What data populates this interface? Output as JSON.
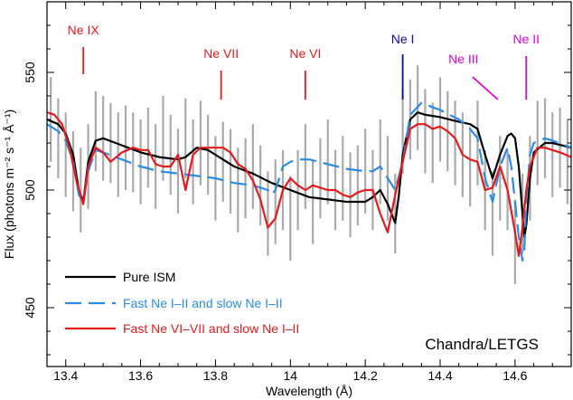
{
  "chart_data": {
    "type": "line",
    "xlabel": "Wavelength (Å)",
    "ylabel": "Flux (photons m⁻² s⁻¹ Å⁻¹)",
    "xlim": [
      13.35,
      14.75
    ],
    "ylim": [
      425,
      580
    ],
    "x_ticks": [
      13.4,
      13.6,
      13.8,
      14.0,
      14.2,
      14.4,
      14.6
    ],
    "x_tick_labels": [
      "13.4",
      "13.6",
      "13.8",
      "14",
      "14.2",
      "14.4",
      "14.6"
    ],
    "y_ticks": [
      450,
      500,
      550
    ],
    "y_tick_labels": [
      "450",
      "500",
      "550"
    ],
    "annotation_text": "Chandra/LETGS",
    "legend_position": "bottom-left",
    "ion_markers": [
      {
        "label": "Ne IX",
        "x": 13.447,
        "color": "#e41a1c"
      },
      {
        "label": "Ne VII",
        "x": 13.815,
        "color": "#e41a1c"
      },
      {
        "label": "Ne VI",
        "x": 14.04,
        "color": "#e41a1c"
      },
      {
        "label": "Ne I",
        "x": 14.3,
        "color": "#0a0a9e"
      },
      {
        "label": "Ne III",
        "x": 14.53,
        "color": "#e000e0"
      },
      {
        "label": "Ne II",
        "x": 14.63,
        "color": "#e000e0"
      }
    ],
    "data_errorbars": {
      "color": "#aaaaaa",
      "x": [
        13.36,
        13.38,
        13.4,
        13.42,
        13.44,
        13.46,
        13.48,
        13.5,
        13.52,
        13.54,
        13.56,
        13.58,
        13.6,
        13.62,
        13.64,
        13.66,
        13.68,
        13.7,
        13.72,
        13.74,
        13.76,
        13.78,
        13.8,
        13.82,
        13.84,
        13.86,
        13.88,
        13.9,
        13.92,
        13.94,
        13.96,
        13.98,
        14.0,
        14.02,
        14.04,
        14.06,
        14.08,
        14.1,
        14.12,
        14.14,
        14.16,
        14.18,
        14.2,
        14.22,
        14.24,
        14.26,
        14.28,
        14.3,
        14.32,
        14.34,
        14.36,
        14.38,
        14.4,
        14.42,
        14.44,
        14.46,
        14.48,
        14.5,
        14.52,
        14.54,
        14.56,
        14.58,
        14.6,
        14.62,
        14.64,
        14.66,
        14.68,
        14.7,
        14.72,
        14.74
      ],
      "y": [
        530,
        522,
        515,
        508,
        500,
        510,
        525,
        522,
        520,
        515,
        518,
        516,
        512,
        518,
        510,
        522,
        515,
        508,
        522,
        512,
        520,
        515,
        505,
        512,
        508,
        500,
        505,
        510,
        502,
        490,
        495,
        500,
        488,
        500,
        510,
        495,
        505,
        512,
        500,
        505,
        498,
        502,
        508,
        500,
        512,
        505,
        490,
        525,
        530,
        535,
        525,
        520,
        530,
        525,
        520,
        515,
        510,
        520,
        500,
        490,
        505,
        500,
        478,
        490,
        505,
        520,
        522,
        515,
        518,
        512
      ],
      "err": [
        18,
        17,
        18,
        17,
        18,
        18,
        17,
        18,
        17,
        18,
        18,
        17,
        18,
        17,
        18,
        18,
        17,
        18,
        17,
        18,
        18,
        17,
        18,
        17,
        18,
        18,
        17,
        18,
        17,
        18,
        18,
        17,
        18,
        17,
        18,
        18,
        17,
        18,
        17,
        18,
        18,
        17,
        18,
        17,
        18,
        18,
        17,
        18,
        17,
        18,
        18,
        17,
        18,
        17,
        18,
        18,
        17,
        18,
        17,
        18,
        18,
        17,
        18,
        17,
        18,
        18,
        17,
        18,
        17,
        18
      ]
    },
    "series": [
      {
        "name": "Pure ISM",
        "color": "#000000",
        "dash": "solid",
        "x": [
          13.35,
          13.38,
          13.4,
          13.42,
          13.435,
          13.447,
          13.46,
          13.48,
          13.5,
          13.55,
          13.6,
          13.65,
          13.7,
          13.72,
          13.75,
          13.78,
          13.8,
          13.85,
          13.9,
          13.95,
          14.0,
          14.05,
          14.1,
          14.15,
          14.2,
          14.22,
          14.24,
          14.26,
          14.28,
          14.29,
          14.3,
          14.32,
          14.34,
          14.36,
          14.4,
          14.45,
          14.48,
          14.5,
          14.52,
          14.54,
          14.56,
          14.58,
          14.59,
          14.6,
          14.61,
          14.62,
          14.625,
          14.63,
          14.64,
          14.65,
          14.68,
          14.7,
          14.75
        ],
        "y": [
          530,
          528,
          524,
          515,
          500,
          495,
          512,
          521,
          522,
          519,
          516,
          514,
          513,
          514,
          518,
          517,
          515,
          510,
          507,
          503,
          500,
          497,
          496,
          495,
          495,
          497,
          500,
          494,
          486,
          498,
          515,
          530,
          533,
          532,
          531,
          529,
          528,
          526,
          515,
          505,
          515,
          523,
          524,
          522,
          510,
          490,
          480,
          485,
          505,
          516,
          520,
          520,
          518
        ]
      },
      {
        "name": "Fast Ne I–II and slow Ne I–II",
        "color": "#2b8be8",
        "dash": "long",
        "x": [
          13.35,
          13.38,
          13.4,
          13.42,
          13.435,
          13.447,
          13.46,
          13.48,
          13.5,
          13.55,
          13.6,
          13.65,
          13.7,
          13.75,
          13.8,
          13.85,
          13.9,
          13.94,
          13.95,
          13.96,
          13.97,
          13.98,
          14.0,
          14.02,
          14.05,
          14.1,
          14.15,
          14.2,
          14.22,
          14.24,
          14.26,
          14.28,
          14.3,
          14.32,
          14.35,
          14.4,
          14.45,
          14.48,
          14.5,
          14.52,
          14.54,
          14.56,
          14.58,
          14.59,
          14.6,
          14.61,
          14.62,
          14.625,
          14.63,
          14.64,
          14.65,
          14.68,
          14.7,
          14.75
        ],
        "y": [
          528,
          525,
          521,
          512,
          498,
          495,
          508,
          517,
          516,
          513,
          510,
          508,
          507,
          506,
          505,
          503,
          502,
          500,
          498,
          500,
          505,
          510,
          512,
          513,
          513,
          511,
          509,
          508,
          508,
          510,
          505,
          500,
          512,
          532,
          537,
          534,
          530,
          526,
          522,
          505,
          495,
          510,
          518,
          510,
          495,
          480,
          470,
          475,
          495,
          515,
          520,
          522,
          521,
          518
        ]
      },
      {
        "name": "Fast Ne VI–VII and slow Ne I–II",
        "color": "#e41a1c",
        "dash": "solid",
        "x": [
          13.35,
          13.37,
          13.39,
          13.41,
          13.43,
          13.447,
          13.46,
          13.48,
          13.5,
          13.52,
          13.55,
          13.58,
          13.6,
          13.62,
          13.64,
          13.66,
          13.68,
          13.7,
          13.72,
          13.74,
          13.76,
          13.78,
          13.8,
          13.82,
          13.84,
          13.86,
          13.88,
          13.9,
          13.92,
          13.94,
          13.96,
          13.98,
          14.0,
          14.02,
          14.04,
          14.06,
          14.08,
          14.1,
          14.12,
          14.14,
          14.16,
          14.18,
          14.2,
          14.22,
          14.24,
          14.26,
          14.28,
          14.3,
          14.32,
          14.34,
          14.36,
          14.38,
          14.4,
          14.42,
          14.44,
          14.46,
          14.48,
          14.5,
          14.52,
          14.54,
          14.56,
          14.58,
          14.6,
          14.61,
          14.62,
          14.63,
          14.64,
          14.66,
          14.68,
          14.7,
          14.72,
          14.75
        ],
        "y": [
          533,
          532,
          528,
          518,
          503,
          494,
          510,
          518,
          516,
          512,
          516,
          518,
          517,
          517,
          511,
          510,
          510,
          515,
          500,
          515,
          518,
          518,
          518,
          518,
          516,
          511,
          509,
          504,
          496,
          484,
          488,
          500,
          505,
          502,
          500,
          502,
          501,
          500,
          500,
          498,
          497,
          499,
          500,
          500,
          490,
          482,
          498,
          512,
          526,
          528,
          528,
          526,
          527,
          525,
          522,
          515,
          513,
          512,
          500,
          501,
          510,
          500,
          482,
          472,
          484,
          500,
          510,
          518,
          518,
          517,
          516,
          514
        ]
      }
    ]
  }
}
